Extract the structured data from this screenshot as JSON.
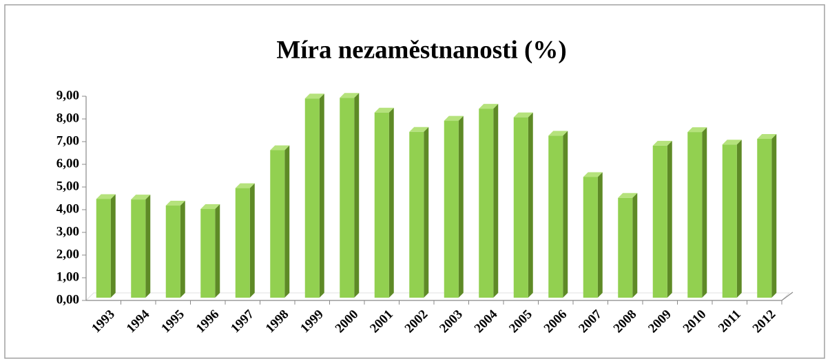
{
  "chart_data": {
    "type": "bar3d",
    "title": "Míra nezaměstnanosti (%)",
    "categories": [
      "1993",
      "1994",
      "1995",
      "1996",
      "1997",
      "1998",
      "1999",
      "2000",
      "2001",
      "2002",
      "2003",
      "2004",
      "2005",
      "2006",
      "2007",
      "2008",
      "2009",
      "2010",
      "2011",
      "2012"
    ],
    "values": [
      4.35,
      4.33,
      4.06,
      3.91,
      4.83,
      6.5,
      8.78,
      8.81,
      8.16,
      7.31,
      7.8,
      8.33,
      7.95,
      7.14,
      5.32,
      4.4,
      6.7,
      7.3,
      6.75,
      7.0
    ],
    "color": "#92d050",
    "ylim": [
      0,
      9
    ],
    "yticks": [
      {
        "value": 0,
        "label": "0,00"
      },
      {
        "value": 1,
        "label": "1,00"
      },
      {
        "value": 2,
        "label": "2,00"
      },
      {
        "value": 3,
        "label": "3,00"
      },
      {
        "value": 4,
        "label": "4,00"
      },
      {
        "value": 5,
        "label": "5,00"
      },
      {
        "value": 6,
        "label": "6,00"
      },
      {
        "value": 7,
        "label": "7,00"
      },
      {
        "value": 8,
        "label": "8,00"
      },
      {
        "value": 9,
        "label": "9,00"
      }
    ]
  }
}
